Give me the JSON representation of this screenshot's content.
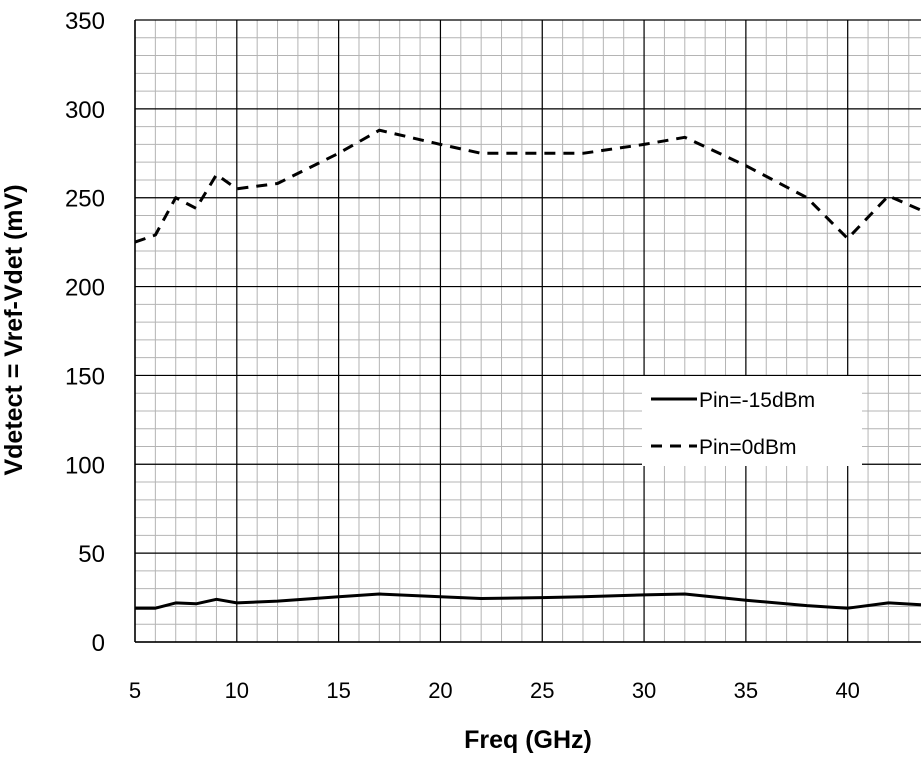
{
  "chart_data": {
    "type": "line",
    "title": "",
    "xlabel": "Freq (GHz)",
    "ylabel": "Vdetect = Vref-Vdet (mV)",
    "xlim": [
      5,
      43.6
    ],
    "ylim": [
      0,
      350
    ],
    "xticks": [
      5,
      10,
      15,
      20,
      25,
      30,
      35,
      40
    ],
    "yticks": [
      0,
      50,
      100,
      150,
      200,
      250,
      300,
      350
    ],
    "x_minor_step": 1,
    "y_minor_step": 10,
    "grid": true,
    "legend_position": "right-center",
    "series": [
      {
        "name": "Pin=-15dBm",
        "style": "solid",
        "color": "#000000",
        "x": [
          5,
          6,
          7,
          8,
          9,
          10,
          12,
          15,
          17,
          20,
          22,
          25,
          27,
          30,
          32,
          35,
          38,
          40,
          42,
          43.6
        ],
        "y": [
          19,
          19,
          22,
          21.5,
          24,
          22,
          23,
          25.5,
          27,
          25.5,
          24.5,
          25,
          25.5,
          26.5,
          27,
          23.5,
          20.5,
          19,
          22,
          21
        ]
      },
      {
        "name": "Pin=0dBm",
        "style": "dashed",
        "color": "#000000",
        "x": [
          5,
          6,
          7,
          8,
          9,
          10,
          12,
          15,
          17,
          20,
          22,
          25,
          27,
          30,
          32,
          35,
          38,
          40,
          42,
          43.6
        ],
        "y": [
          225,
          229,
          250,
          244,
          263,
          255,
          258,
          275,
          288,
          280,
          275,
          275,
          275,
          280,
          284,
          268,
          250,
          227,
          251,
          243
        ]
      }
    ]
  }
}
